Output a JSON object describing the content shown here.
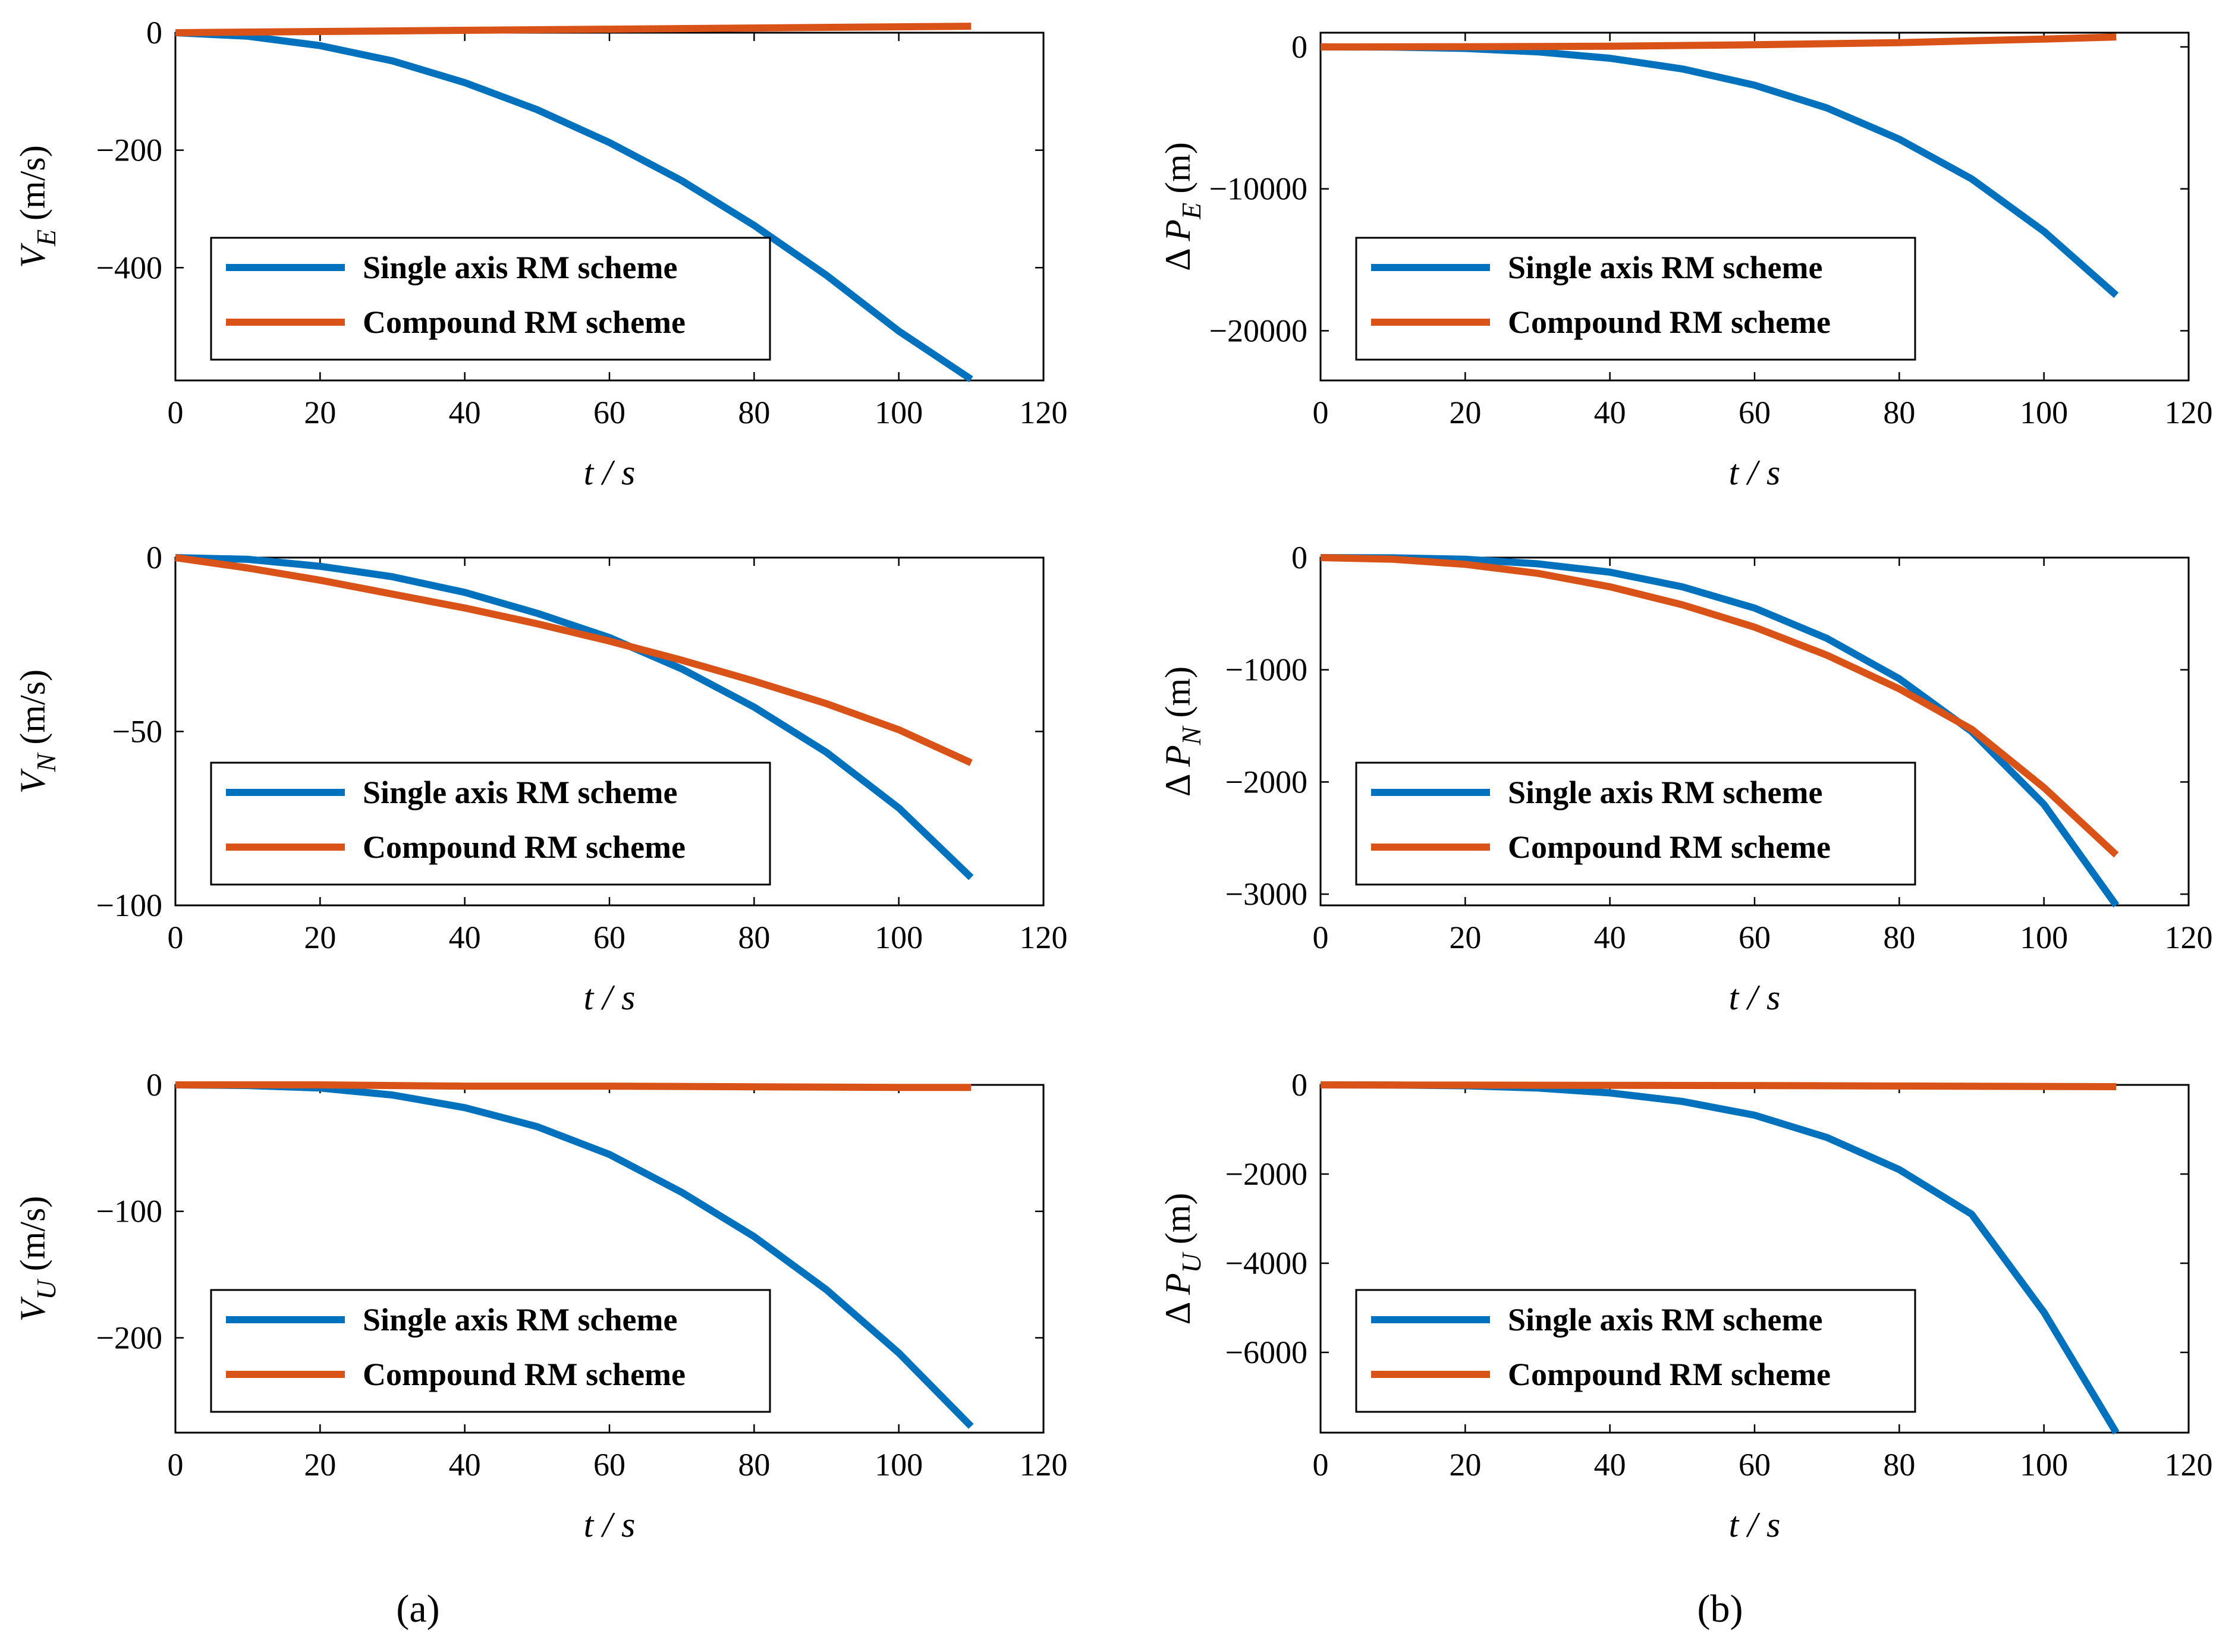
{
  "colors": {
    "single": "#0072BD",
    "compound": "#D95319",
    "axis": "#000000",
    "grid": "#555555"
  },
  "panel_labels": {
    "a": "(a)",
    "b": "(b)"
  },
  "chart_data": [
    {
      "id": "ve",
      "type": "line",
      "xlabel": "t  / s",
      "ylabel_main": "V",
      "ylabel_sub": "E",
      "ylabel_unit": " (m/s)",
      "ylabel_delta": false,
      "xlim": [
        0,
        120
      ],
      "ylim": [
        -592,
        0
      ],
      "xticks": [
        0,
        20,
        40,
        60,
        80,
        100,
        120
      ],
      "yticks": [
        0,
        -200,
        -400
      ],
      "ytick_labels": [
        "0",
        "−200",
        "−400"
      ],
      "series": [
        {
          "name": "Single axis RM scheme",
          "color": "single",
          "x": [
            0,
            10,
            20,
            30,
            40,
            50,
            60,
            70,
            80,
            90,
            100,
            110
          ],
          "y": [
            0,
            -6,
            -22,
            -48,
            -85,
            -131,
            -187,
            -252,
            -328,
            -413,
            -508,
            -590
          ]
        },
        {
          "name": "Compound RM scheme",
          "color": "compound",
          "x": [
            0,
            20,
            40,
            60,
            80,
            100,
            110
          ],
          "y": [
            0,
            2,
            4,
            6,
            8,
            10,
            11
          ]
        }
      ],
      "legend": [
        "Single axis RM scheme",
        "Compound RM scheme"
      ]
    },
    {
      "id": "pe",
      "type": "line",
      "xlabel": "t  / s",
      "ylabel_main": "P",
      "ylabel_sub": "E",
      "ylabel_unit": " (m)",
      "ylabel_delta": true,
      "xlim": [
        0,
        120
      ],
      "ylim": [
        -23500,
        1000
      ],
      "xticks": [
        0,
        20,
        40,
        60,
        80,
        100,
        120
      ],
      "yticks": [
        0,
        -10000,
        -20000
      ],
      "ytick_labels": [
        "0",
        "−10000",
        "−20000"
      ],
      "series": [
        {
          "name": "Single axis RM scheme",
          "color": "single",
          "x": [
            0,
            10,
            20,
            30,
            40,
            50,
            60,
            70,
            80,
            90,
            100,
            110
          ],
          "y": [
            0,
            -15,
            -110,
            -350,
            -800,
            -1550,
            -2700,
            -4300,
            -6500,
            -9300,
            -13000,
            -17500
          ]
        },
        {
          "name": "Compound RM scheme",
          "color": "compound",
          "x": [
            0,
            20,
            40,
            60,
            80,
            100,
            110
          ],
          "y": [
            0,
            10,
            50,
            150,
            300,
            550,
            700
          ]
        }
      ],
      "legend": [
        "Single axis RM scheme",
        "Compound RM scheme"
      ]
    },
    {
      "id": "vn",
      "type": "line",
      "xlabel": "t  / s",
      "ylabel_main": "V",
      "ylabel_sub": "N",
      "ylabel_unit": " (m/s)",
      "ylabel_delta": false,
      "xlim": [
        0,
        120
      ],
      "ylim": [
        -100,
        0
      ],
      "xticks": [
        0,
        20,
        40,
        60,
        80,
        100,
        120
      ],
      "yticks": [
        0,
        -50,
        -100
      ],
      "ytick_labels": [
        "0",
        "−50",
        "−100"
      ],
      "series": [
        {
          "name": "Single axis RM scheme",
          "color": "single",
          "x": [
            0,
            10,
            20,
            30,
            40,
            50,
            60,
            70,
            80,
            90,
            100,
            110
          ],
          "y": [
            0,
            -0.5,
            -2.5,
            -5.5,
            -10,
            -16,
            -23,
            -32,
            -43,
            -56,
            -72,
            -92
          ]
        },
        {
          "name": "Compound RM scheme",
          "color": "compound",
          "x": [
            0,
            10,
            20,
            30,
            40,
            50,
            60,
            70,
            80,
            90,
            100,
            110
          ],
          "y": [
            0,
            -3,
            -6.5,
            -10.5,
            -14.5,
            -19,
            -24,
            -29.5,
            -35.5,
            -42,
            -49.5,
            -59
          ]
        }
      ],
      "legend": [
        "Single axis RM scheme",
        "Compound RM scheme"
      ]
    },
    {
      "id": "pn",
      "type": "line",
      "xlabel": "t  / s",
      "ylabel_main": "P",
      "ylabel_sub": "N",
      "ylabel_unit": " (m)",
      "ylabel_delta": true,
      "xlim": [
        0,
        120
      ],
      "ylim": [
        -3100,
        0
      ],
      "xticks": [
        0,
        20,
        40,
        60,
        80,
        100,
        120
      ],
      "yticks": [
        0,
        -1000,
        -2000,
        -3000
      ],
      "ytick_labels": [
        "0",
        "−1000",
        "−2000",
        "−3000"
      ],
      "series": [
        {
          "name": "Single axis RM scheme",
          "color": "single",
          "x": [
            0,
            10,
            20,
            30,
            40,
            50,
            60,
            70,
            80,
            90,
            100,
            110
          ],
          "y": [
            0,
            -2,
            -15,
            -55,
            -130,
            -260,
            -450,
            -720,
            -1080,
            -1550,
            -2200,
            -3100
          ]
        },
        {
          "name": "Compound RM scheme",
          "color": "compound",
          "x": [
            0,
            10,
            20,
            30,
            40,
            50,
            60,
            70,
            80,
            90,
            100,
            110
          ],
          "y": [
            0,
            -15,
            -60,
            -140,
            -260,
            -420,
            -620,
            -870,
            -1170,
            -1530,
            -2050,
            -2650
          ]
        }
      ],
      "legend": [
        "Single axis RM scheme",
        "Compound RM scheme"
      ]
    },
    {
      "id": "vu",
      "type": "line",
      "xlabel": "t  / s",
      "ylabel_main": "V",
      "ylabel_sub": "U",
      "ylabel_unit": " (m/s)",
      "ylabel_delta": false,
      "xlim": [
        0,
        120
      ],
      "ylim": [
        -275,
        0
      ],
      "xticks": [
        0,
        20,
        40,
        60,
        80,
        100,
        120
      ],
      "yticks": [
        0,
        -100,
        -200
      ],
      "ytick_labels": [
        "0",
        "−100",
        "−200"
      ],
      "series": [
        {
          "name": "Single axis RM scheme",
          "color": "single",
          "x": [
            0,
            10,
            20,
            30,
            40,
            50,
            60,
            70,
            80,
            90,
            100,
            110
          ],
          "y": [
            0,
            -0.5,
            -2.5,
            -8,
            -18,
            -33,
            -55,
            -85,
            -120,
            -162,
            -212,
            -270
          ]
        },
        {
          "name": "Compound RM scheme",
          "color": "compound",
          "x": [
            0,
            20,
            40,
            60,
            80,
            100,
            110
          ],
          "y": [
            0,
            0,
            -1,
            -1,
            -1.5,
            -2,
            -2
          ]
        }
      ],
      "legend": [
        "Single axis RM scheme",
        "Compound RM scheme"
      ]
    },
    {
      "id": "pu",
      "type": "line",
      "xlabel": "t  / s",
      "ylabel_main": "P",
      "ylabel_sub": "U",
      "ylabel_unit": " (m)",
      "ylabel_delta": true,
      "xlim": [
        0,
        120
      ],
      "ylim": [
        -7800,
        0
      ],
      "xticks": [
        0,
        20,
        40,
        60,
        80,
        100,
        120
      ],
      "yticks": [
        0,
        -2000,
        -4000,
        -6000
      ],
      "ytick_labels": [
        "0",
        "−2000",
        "−4000",
        "−6000"
      ],
      "series": [
        {
          "name": "Single axis RM scheme",
          "color": "single",
          "x": [
            0,
            10,
            20,
            30,
            40,
            50,
            60,
            70,
            80,
            90,
            100,
            110
          ],
          "y": [
            0,
            -2,
            -20,
            -70,
            -180,
            -370,
            -680,
            -1180,
            -1900,
            -2900,
            -5100,
            -7800
          ]
        },
        {
          "name": "Compound RM scheme",
          "color": "compound",
          "x": [
            0,
            20,
            40,
            60,
            80,
            100,
            110
          ],
          "y": [
            0,
            -5,
            -10,
            -15,
            -25,
            -35,
            -40
          ]
        }
      ],
      "legend": [
        "Single axis RM scheme",
        "Compound RM scheme"
      ]
    }
  ]
}
